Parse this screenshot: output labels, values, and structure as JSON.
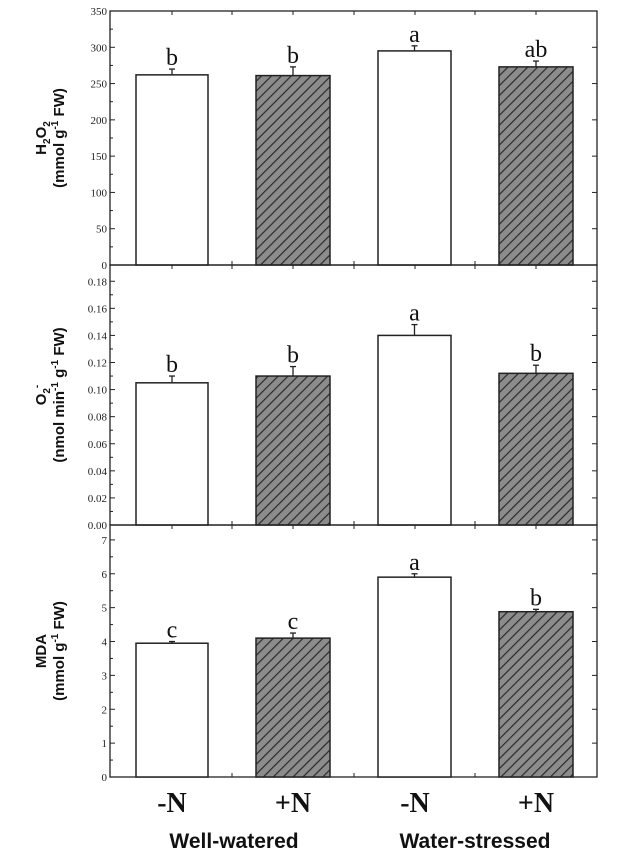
{
  "colors": {
    "plain_bar": "#ffffff",
    "hatched_bar_fill": "#8c8c8c",
    "hatch_lines": "#2a2a2a",
    "axis": "#222222"
  },
  "chart_data": [
    {
      "type": "bar",
      "categories": [
        "-N",
        "+N",
        "-N",
        "+N"
      ],
      "groups": [
        "Well-watered",
        "Water-stressed"
      ],
      "bar_style": [
        "plain",
        "hatched",
        "plain",
        "hatched"
      ],
      "ylabel_line1": [
        {
          "t": "H"
        },
        {
          "t": "2",
          "sub": true
        },
        {
          "t": "O"
        },
        {
          "t": "2",
          "sub": true
        }
      ],
      "ylabel_line2": [
        {
          "t": "(mmol g"
        },
        {
          "t": "-1",
          "sup": true
        },
        {
          "t": " FW)"
        }
      ],
      "ylim": [
        0,
        350
      ],
      "yticks": [
        "0",
        "50",
        "100",
        "150",
        "200",
        "250",
        "300",
        "350"
      ],
      "ytick_values": [
        0,
        50,
        100,
        150,
        200,
        250,
        300,
        350
      ],
      "values": [
        262,
        261,
        295,
        273
      ],
      "errors": [
        8,
        12,
        7,
        8
      ],
      "significance": [
        "b",
        "b",
        "a",
        "ab"
      ]
    },
    {
      "type": "bar",
      "categories": [
        "-N",
        "+N",
        "-N",
        "+N"
      ],
      "bar_style": [
        "plain",
        "hatched",
        "plain",
        "hatched"
      ],
      "ylabel_line1": [
        {
          "t": "O"
        },
        {
          "t": "2",
          "sub": true
        },
        {
          "t": "-",
          "sup": true
        }
      ],
      "ylabel_line2": [
        {
          "t": "(nmol min"
        },
        {
          "t": "-1",
          "sup": true
        },
        {
          "t": " g"
        },
        {
          "t": "-1",
          "sup": true
        },
        {
          "t": " FW)"
        }
      ],
      "ylim": [
        0,
        0.192
      ],
      "yticks": [
        "0.00",
        "0.02",
        "0.04",
        "0.06",
        "0.08",
        "0.10",
        "0.12",
        "0.14",
        "0.16",
        "0.18"
      ],
      "ytick_values": [
        0,
        0.02,
        0.04,
        0.06,
        0.08,
        0.1,
        0.12,
        0.14,
        0.16,
        0.18
      ],
      "values": [
        0.105,
        0.11,
        0.14,
        0.112
      ],
      "errors": [
        0.005,
        0.007,
        0.008,
        0.006
      ],
      "significance": [
        "b",
        "b",
        "a",
        "b"
      ]
    },
    {
      "type": "bar",
      "categories": [
        "-N",
        "+N",
        "-N",
        "+N"
      ],
      "bar_style": [
        "plain",
        "hatched",
        "plain",
        "hatched"
      ],
      "ylabel_line1": [
        {
          "t": "MDA"
        }
      ],
      "ylabel_line2": [
        {
          "t": "(mmol g"
        },
        {
          "t": "-1",
          "sup": true
        },
        {
          "t": " FW)"
        }
      ],
      "ylim": [
        0,
        7.44
      ],
      "yticks": [
        "0",
        "1",
        "2",
        "3",
        "4",
        "5",
        "6",
        "7"
      ],
      "ytick_values": [
        0,
        1,
        2,
        3,
        4,
        5,
        6,
        7
      ],
      "values": [
        3.95,
        4.1,
        5.9,
        4.88
      ],
      "errors": [
        0.05,
        0.15,
        0.1,
        0.07
      ],
      "significance": [
        "c",
        "c",
        "a",
        "b"
      ]
    }
  ],
  "x_axis": {
    "tick_labels": [
      "-N",
      "+N",
      "-N",
      "+N"
    ],
    "group_labels": [
      "Well-watered",
      "Water-stressed"
    ]
  }
}
